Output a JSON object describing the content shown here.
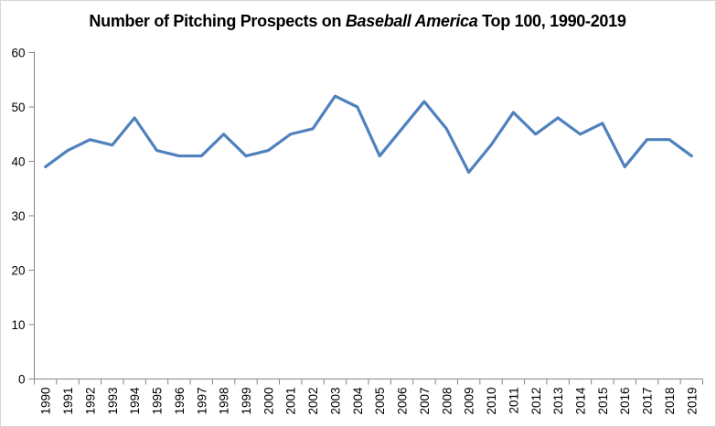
{
  "frame": {
    "background": "#FFFFFF",
    "border_color": "#D6D6D6"
  },
  "chart_data": {
    "type": "line",
    "title": "Number of Pitching Prospects on Baseball America Top 100, 1990-2019",
    "title_parts": {
      "prefix": "Number of Pitching Prospects on ",
      "italic": "Baseball America",
      "suffix": " Top 100, 1990-2019"
    },
    "categories": [
      "1990",
      "1991",
      "1992",
      "1993",
      "1994",
      "1995",
      "1996",
      "1997",
      "1998",
      "1999",
      "2000",
      "2001",
      "2002",
      "2003",
      "2004",
      "2005",
      "2006",
      "2007",
      "2008",
      "2009",
      "2010",
      "2011",
      "2012",
      "2013",
      "2014",
      "2015",
      "2016",
      "2017",
      "2018",
      "2019"
    ],
    "values": [
      39,
      42,
      44,
      43,
      48,
      42,
      41,
      41,
      45,
      41,
      42,
      45,
      46,
      52,
      50,
      41,
      46,
      51,
      46,
      38,
      43,
      49,
      45,
      48,
      45,
      47,
      39,
      44,
      44,
      41
    ],
    "xlabel": "",
    "ylabel": "",
    "ylim": [
      0,
      60
    ],
    "yticks": [
      0,
      10,
      20,
      30,
      40,
      50,
      60
    ],
    "grid": false,
    "legend": false,
    "markers": false,
    "line_color": "#4F81BD",
    "axis_color": "#878787",
    "tick_label_color": "#000000",
    "title_color": "#000000"
  }
}
